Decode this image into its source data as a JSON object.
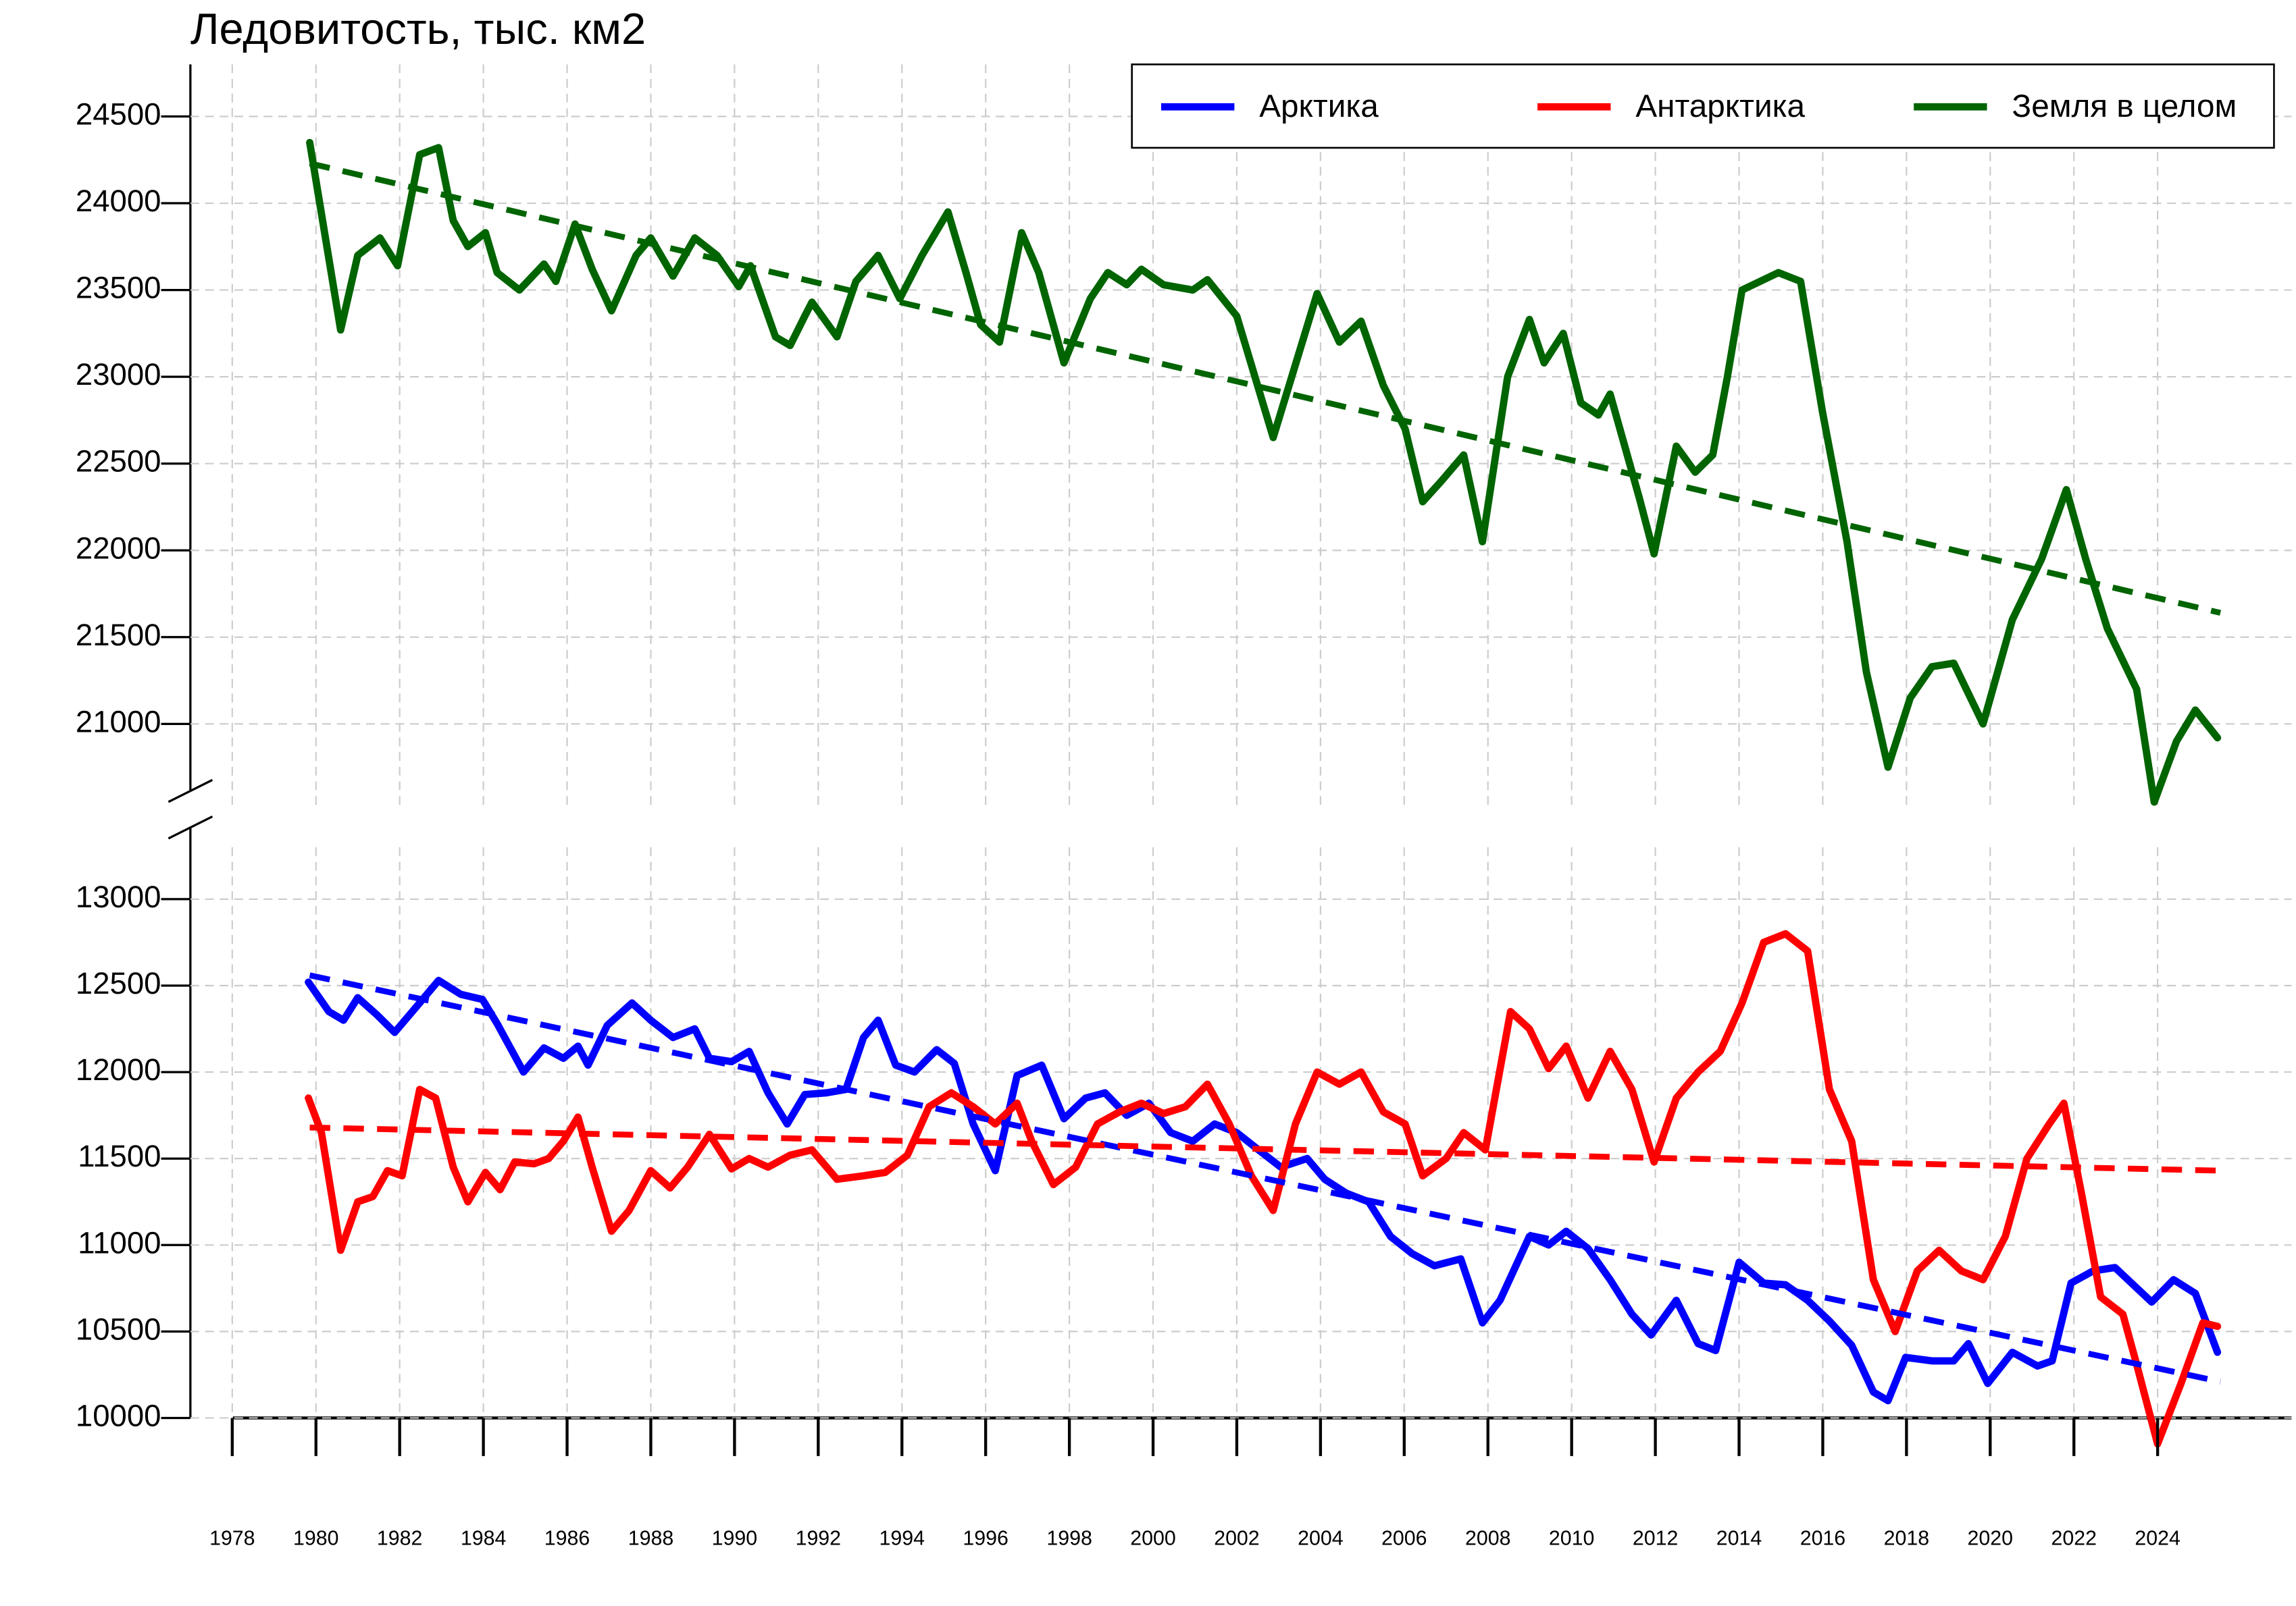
{
  "chart_data": [
    {
      "type": "line",
      "title": "Ледовитость, тыс. км2",
      "xlim": [
        1977,
        2027.2
      ],
      "ylim": [
        20500,
        24800
      ],
      "yticks": [
        21000,
        21500,
        22000,
        22500,
        23000,
        23500,
        24000,
        24500
      ],
      "grid": true,
      "legend": "top right",
      "series": [
        {
          "name": "Земля в целом",
          "color": "#006400",
          "x": [
            1979.85,
            1980.59,
            1981.0,
            1981.53,
            1981.95,
            1982.48,
            1982.93,
            1983.28,
            1983.63,
            1984.05,
            1984.33,
            1984.86,
            1985.45,
            1985.73,
            1986.19,
            1986.6,
            1987.06,
            1987.65,
            1988.0,
            1988.53,
            1989.05,
            1989.58,
            1990.1,
            1990.38,
            1990.98,
            1991.33,
            1991.68,
            1991.85,
            1992.45,
            1992.9,
            1993.43,
            1993.95,
            1994.48,
            1995.1,
            1995.53,
            1995.88,
            1996.33,
            1996.86,
            1997.27,
            1997.87,
            1998.5,
            1998.92,
            1999.37,
            1999.72,
            2000.25,
            2000.95,
            2001.3,
            2002.0,
            2002.87,
            2003.92,
            2004.45,
            2004.97,
            2005.5,
            2006.02,
            2006.44,
            2006.89,
            2007.42,
            2007.87,
            2008.47,
            2008.99,
            2009.34,
            2009.8,
            2010.22,
            2010.64,
            2010.92,
            2011.62,
            2011.97,
            2012.5,
            2012.95,
            2013.37,
            2013.72,
            2014.07,
            2014.94,
            2015.47,
            2015.99,
            2016.58,
            2017.04,
            2017.56,
            2018.09,
            2018.61,
            2019.13,
            2019.83,
            2020.53,
            2021.23,
            2021.82,
            2022.28,
            2022.8,
            2023.5,
            2023.92,
            2024.45,
            2024.9,
            2025.43
          ],
          "values": [
            24350,
            23270,
            23700,
            23800,
            23640,
            24280,
            24320,
            23900,
            23750,
            23830,
            23600,
            23500,
            23650,
            23550,
            23880,
            23620,
            23380,
            23700,
            23800,
            23580,
            23800,
            23700,
            23520,
            23640,
            23230,
            23180,
            23350,
            23430,
            23230,
            23550,
            23700,
            23450,
            23700,
            23950,
            23600,
            23300,
            23200,
            23830,
            23600,
            23080,
            23450,
            23600,
            23530,
            23620,
            23530,
            23500,
            23560,
            23350,
            22650,
            23480,
            23200,
            23320,
            22950,
            22700,
            22280,
            22400,
            22550,
            22050,
            23000,
            23330,
            23080,
            23250,
            22850,
            22780,
            22900,
            22300,
            21980,
            22600,
            22450,
            22550,
            23000,
            23500,
            23600,
            23550,
            22800,
            22050,
            21300,
            20750,
            21150,
            21330,
            21350,
            21000,
            21600,
            21950,
            22350,
            21950,
            21550,
            21200,
            20550,
            20900,
            21080,
            20920
          ]
        },
        {
          "color": "#006400",
          "dashed": true,
          "x": [
            1979.85,
            2025.5
          ],
          "values": [
            24230,
            21640
          ]
        }
      ]
    },
    {
      "type": "line",
      "xlim": [
        1977,
        2027.2
      ],
      "ylim": [
        10000,
        13300
      ],
      "yticks": [
        10000,
        10500,
        11000,
        11500,
        12000,
        12500,
        13000
      ],
      "xticks": [
        1978,
        1980,
        1982,
        1984,
        1986,
        1988,
        1990,
        1992,
        1994,
        1996,
        1998,
        2000,
        2002,
        2004,
        2006,
        2008,
        2010,
        2012,
        2014,
        2016,
        2018,
        2020,
        2022,
        2024
      ],
      "grid": true,
      "series": [
        {
          "name": "Арктика",
          "color": "#0000ff",
          "x": [
            1979.82,
            1980.31,
            1980.66,
            1981.0,
            1981.46,
            1981.88,
            1982.41,
            1982.93,
            1983.46,
            1983.98,
            1984.33,
            1984.96,
            1985.45,
            1985.91,
            1986.26,
            1986.5,
            1986.96,
            1987.55,
            1988.0,
            1988.53,
            1989.05,
            1989.4,
            1989.93,
            1990.35,
            1990.8,
            1991.26,
            1991.68,
            1992.2,
            1992.66,
            1993.08,
            1993.43,
            1993.85,
            1994.3,
            1994.83,
            1995.25,
            1995.7,
            1996.23,
            1996.75,
            1997.34,
            1997.87,
            1998.39,
            1998.85,
            1999.37,
            1999.9,
            2000.42,
            2000.95,
            2001.47,
            2002.0,
            2002.52,
            2003.05,
            2003.68,
            2004.1,
            2004.62,
            2005.15,
            2005.67,
            2006.19,
            2006.72,
            2007.35,
            2007.87,
            2008.29,
            2008.99,
            2009.45,
            2009.87,
            2010.39,
            2010.92,
            2011.44,
            2011.9,
            2012.5,
            2013.02,
            2013.44,
            2014.0,
            2014.59,
            2015.11,
            2015.64,
            2016.16,
            2016.69,
            2017.21,
            2017.56,
            2017.98,
            2018.61,
            2019.13,
            2019.48,
            2019.94,
            2020.53,
            2021.13,
            2021.48,
            2021.93,
            2022.46,
            2022.98,
            2023.51,
            2023.86,
            2024.38,
            2024.9,
            2025.43
          ],
          "values": [
            12520,
            12350,
            12300,
            12430,
            12330,
            12230,
            12380,
            12530,
            12450,
            12420,
            12280,
            12000,
            12140,
            12080,
            12150,
            12040,
            12270,
            12400,
            12300,
            12200,
            12250,
            12080,
            12060,
            12120,
            11880,
            11700,
            11870,
            11880,
            11900,
            12200,
            12300,
            12040,
            12000,
            12130,
            12050,
            11700,
            11430,
            11980,
            12040,
            11730,
            11850,
            11880,
            11750,
            11820,
            11650,
            11600,
            11700,
            11650,
            11550,
            11450,
            11500,
            11380,
            11300,
            11250,
            11050,
            10950,
            10880,
            10920,
            10550,
            10680,
            11050,
            11000,
            11080,
            10980,
            10800,
            10600,
            10480,
            10680,
            10430,
            10390,
            10900,
            10780,
            10770,
            10680,
            10560,
            10420,
            10150,
            10100,
            10350,
            10330,
            10330,
            10430,
            10200,
            10380,
            10300,
            10330,
            10780,
            10850,
            10870,
            10750,
            10670,
            10800,
            10720,
            10380
          ]
        },
        {
          "name": "Антарктика",
          "color": "#ff0000",
          "x": [
            1979.82,
            1980.13,
            1980.59,
            1981.0,
            1981.36,
            1981.71,
            1982.06,
            1982.48,
            1982.86,
            1983.28,
            1983.63,
            1984.05,
            1984.4,
            1984.75,
            1985.21,
            1985.56,
            1985.91,
            1986.26,
            1986.6,
            1987.06,
            1987.48,
            1988.0,
            1988.46,
            1988.88,
            1989.4,
            1989.93,
            1990.35,
            1990.8,
            1991.33,
            1991.85,
            1992.45,
            1993.08,
            1993.6,
            1994.13,
            1994.65,
            1995.18,
            1995.7,
            1996.23,
            1996.75,
            1997.1,
            1997.62,
            1998.15,
            1998.67,
            1999.2,
            1999.72,
            2000.25,
            2000.77,
            2001.3,
            2001.82,
            2002.35,
            2002.87,
            2003.4,
            2003.92,
            2004.45,
            2004.97,
            2005.5,
            2006.02,
            2006.44,
            2007.0,
            2007.42,
            2007.94,
            2008.54,
            2008.99,
            2009.45,
            2009.87,
            2010.39,
            2010.92,
            2011.44,
            2011.97,
            2012.5,
            2013.02,
            2013.55,
            2014.07,
            2014.59,
            2015.11,
            2015.64,
            2016.16,
            2016.69,
            2017.21,
            2017.73,
            2018.26,
            2018.78,
            2019.31,
            2019.83,
            2020.36,
            2020.88,
            2021.41,
            2021.76,
            2022.18,
            2022.64,
            2023.17,
            2023.51,
            2024.0,
            2024.56,
            2025.08,
            2025.43
          ],
          "values": [
            11850,
            11650,
            10970,
            11250,
            11280,
            11430,
            11400,
            11900,
            11850,
            11450,
            11250,
            11420,
            11320,
            11480,
            11470,
            11500,
            11600,
            11740,
            11450,
            11080,
            11200,
            11430,
            11330,
            11450,
            11640,
            11440,
            11500,
            11450,
            11520,
            11550,
            11380,
            11400,
            11420,
            11520,
            11800,
            11880,
            11800,
            11700,
            11820,
            11600,
            11350,
            11450,
            11700,
            11770,
            11820,
            11760,
            11800,
            11930,
            11700,
            11400,
            11200,
            11700,
            12000,
            11930,
            12000,
            11770,
            11700,
            11400,
            11500,
            11650,
            11550,
            12350,
            12250,
            12020,
            12150,
            11850,
            12120,
            11900,
            11480,
            11850,
            12000,
            12120,
            12400,
            12750,
            12800,
            12700,
            11900,
            11600,
            10800,
            10500,
            10850,
            10970,
            10850,
            10800,
            11050,
            11500,
            11700,
            11820,
            11300,
            10700,
            10600,
            10300,
            9850,
            10200,
            10550,
            10530
          ]
        },
        {
          "color": "#0000ff",
          "dashed": true,
          "x": [
            1979.85,
            2025.5
          ],
          "values": [
            12560,
            10210
          ]
        },
        {
          "color": "#ff0000",
          "dashed": true,
          "x": [
            1979.85,
            2025.5
          ],
          "values": [
            11680,
            11430
          ]
        }
      ]
    }
  ]
}
